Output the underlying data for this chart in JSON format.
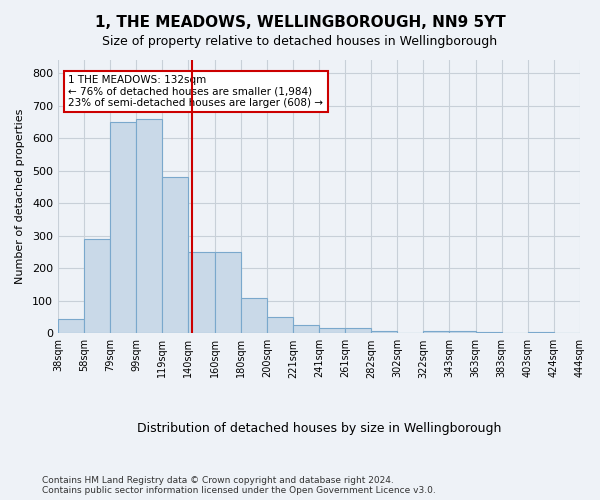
{
  "title": "1, THE MEADOWS, WELLINGBOROUGH, NN9 5YT",
  "subtitle": "Size of property relative to detached houses in Wellingborough",
  "xlabel": "Distribution of detached houses by size in Wellingborough",
  "ylabel": "Number of detached properties",
  "bin_edges": [
    "38sqm",
    "58sqm",
    "79sqm",
    "99sqm",
    "119sqm",
    "140sqm",
    "160sqm",
    "180sqm",
    "200sqm",
    "221sqm",
    "241sqm",
    "261sqm",
    "282sqm",
    "302sqm",
    "322sqm",
    "343sqm",
    "363sqm",
    "383sqm",
    "403sqm",
    "424sqm",
    "444sqm"
  ],
  "bar_values": [
    45,
    290,
    650,
    660,
    480,
    250,
    250,
    110,
    50,
    25,
    15,
    15,
    8,
    0,
    8,
    8,
    5,
    0,
    5,
    0
  ],
  "bar_color": "#c9d9e8",
  "bar_edge_color": "#7aa8cc",
  "grid_color": "#c8d0d8",
  "background_color": "#eef2f7",
  "red_line_x": 4.65,
  "annotation_text": "1 THE MEADOWS: 132sqm\n← 76% of detached houses are smaller (1,984)\n23% of semi-detached houses are larger (608) →",
  "annotation_box_color": "#ffffff",
  "annotation_box_edge": "#cc0000",
  "footer": "Contains HM Land Registry data © Crown copyright and database right 2024.\nContains public sector information licensed under the Open Government Licence v3.0.",
  "ylim": [
    0,
    840
  ],
  "yticks": [
    0,
    100,
    200,
    300,
    400,
    500,
    600,
    700,
    800
  ]
}
